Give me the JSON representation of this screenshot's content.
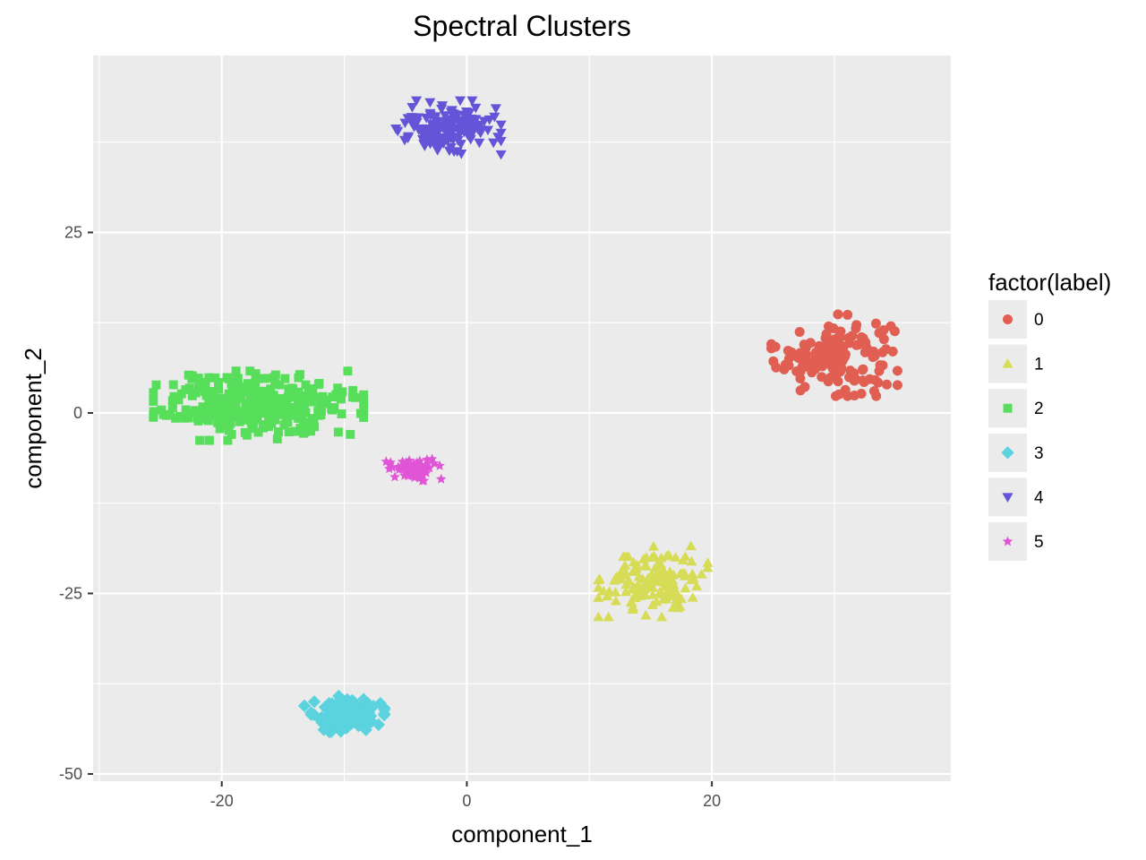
{
  "chart_data": {
    "type": "scatter",
    "title": "Spectral Clusters",
    "xlabel": "component_1",
    "ylabel": "component_2",
    "xlim": [
      -30.5,
      39.5
    ],
    "ylim": [
      -51,
      49.5
    ],
    "x_ticks": [
      -20,
      0,
      20
    ],
    "y_ticks": [
      -50,
      -25,
      0,
      25
    ],
    "x_tick_labels": [
      "-20",
      "0",
      "20"
    ],
    "y_tick_labels": [
      "-50",
      "-25",
      "0",
      "25"
    ],
    "grid": true,
    "panel_background": "#ebebeb",
    "legend": {
      "title": "factor(label)",
      "position": "right"
    },
    "series": [
      {
        "label": "0",
        "color": "#e05e52",
        "shape": "circle",
        "center": [
          30.0,
          8.0
        ],
        "spread": [
          3.0,
          3.3
        ],
        "n": 150
      },
      {
        "label": "1",
        "color": "#d7dc56",
        "shape": "triangle-up",
        "center": [
          15.2,
          -23.3
        ],
        "spread": [
          2.6,
          2.9
        ],
        "n": 140
      },
      {
        "label": "2",
        "color": "#57de5b",
        "shape": "square",
        "center": [
          -17.0,
          1.0
        ],
        "spread": [
          5.0,
          2.8
        ],
        "n": 330
      },
      {
        "label": "3",
        "color": "#5bd3de",
        "shape": "diamond",
        "center": [
          -10.0,
          -41.8
        ],
        "spread": [
          1.9,
          1.6
        ],
        "n": 120
      },
      {
        "label": "4",
        "color": "#6454d8",
        "shape": "triangle-down",
        "center": [
          -1.5,
          39.5
        ],
        "spread": [
          2.5,
          2.2
        ],
        "n": 160
      },
      {
        "label": "5",
        "color": "#e054d6",
        "shape": "star",
        "center": [
          -4.5,
          -7.7
        ],
        "spread": [
          1.4,
          1.0
        ],
        "n": 60
      }
    ]
  }
}
